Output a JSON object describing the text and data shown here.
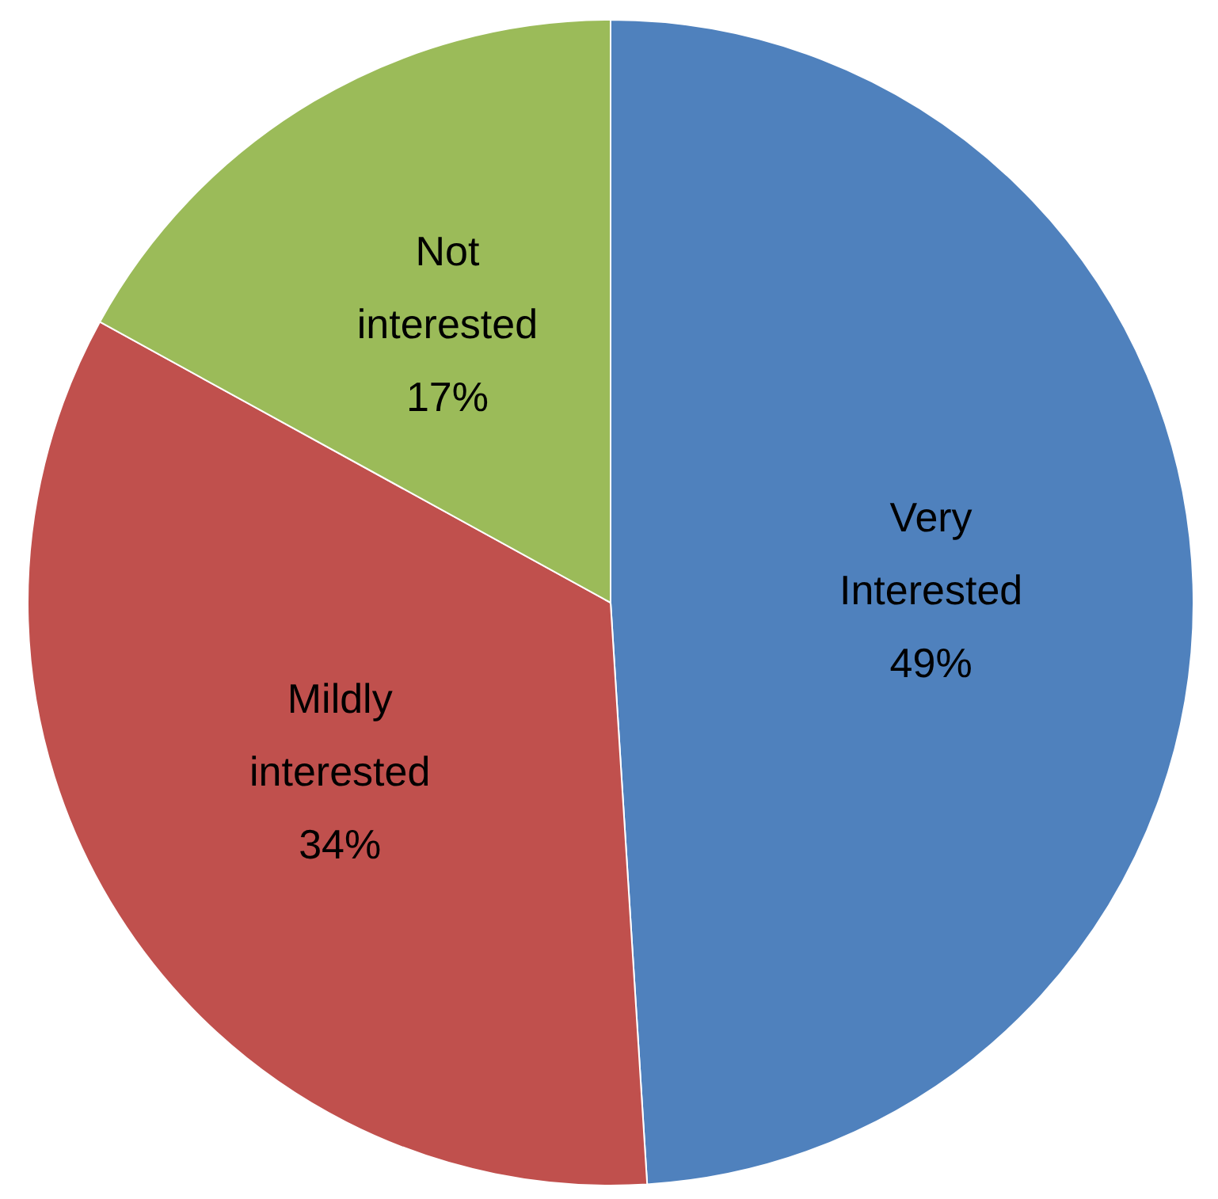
{
  "chart_data": {
    "type": "pie",
    "categories": [
      "Very Interested",
      "Mildly interested",
      "Not interested"
    ],
    "values": [
      49,
      34,
      17
    ],
    "colors": [
      "#4f81bd",
      "#c0504d",
      "#9bbb59"
    ],
    "value_labels": [
      "49%",
      "34%",
      "17%"
    ],
    "legend": false
  }
}
